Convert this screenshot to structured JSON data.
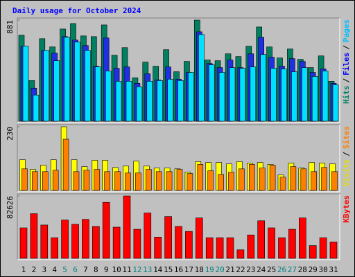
{
  "chart_data": [
    {
      "type": "bar",
      "title": "Daily usage for October 2024",
      "ylim": [
        0,
        881
      ],
      "yticks": [
        881
      ],
      "legend_separator": "/",
      "series": [
        {
          "name": "Hits",
          "color": "#008060",
          "label_color": "#008060",
          "values": [
            749,
            354,
            719,
            647,
            803,
            851,
            743,
            737,
            839,
            575,
            641,
            378,
            515,
            479,
            623,
            431,
            521,
            881,
            533,
            527,
            587,
            563,
            653,
            821,
            647,
            551,
            629,
            539,
            467,
            569,
            348
          ]
        },
        {
          "name": "Files",
          "color": "#2030e0",
          "label_color": "#0000ff",
          "values": [
            653,
            288,
            617,
            593,
            737,
            707,
            659,
            479,
            725,
            461,
            473,
            330,
            413,
            360,
            473,
            366,
            425,
            779,
            503,
            467,
            533,
            467,
            587,
            731,
            557,
            479,
            545,
            521,
            425,
            455,
            330
          ]
        },
        {
          "name": "Pages",
          "color": "#00e0ff",
          "label_color": "#00c0ff",
          "values": [
            653,
            228,
            617,
            527,
            731,
            689,
            617,
            473,
            437,
            348,
            348,
            300,
            348,
            354,
            366,
            354,
            425,
            755,
            491,
            425,
            467,
            461,
            473,
            581,
            461,
            455,
            431,
            467,
            390,
            437,
            318
          ]
        }
      ]
    },
    {
      "type": "bar",
      "ylim": [
        0,
        230
      ],
      "yticks": [
        230
      ],
      "legend_separator": "/",
      "series": [
        {
          "name": "Visits",
          "color": "#ffff00",
          "label_color": "#e0e000",
          "values": [
            111,
            76,
            91,
            111,
            230,
            111,
            86,
            109,
            109,
            83,
            88,
            106,
            88,
            81,
            81,
            78,
            66,
            104,
            101,
            101,
            96,
            104,
            99,
            101,
            94,
            56,
            99,
            81,
            101,
            99,
            96
          ]
        },
        {
          "name": "Sites",
          "color": "#ff8000",
          "label_color": "#ff8000",
          "values": [
            78,
            68,
            68,
            73,
            185,
            68,
            73,
            76,
            68,
            68,
            63,
            63,
            76,
            68,
            68,
            76,
            61,
            94,
            71,
            58,
            66,
            78,
            94,
            81,
            91,
            48,
            86,
            78,
            68,
            83,
            68
          ]
        }
      ]
    },
    {
      "type": "bar",
      "ylim": [
        0,
        82626
      ],
      "yticks": [
        82626
      ],
      "categories": [
        "1",
        "2",
        "3",
        "4",
        "5",
        "6",
        "7",
        "8",
        "9",
        "10",
        "11",
        "12",
        "13",
        "14",
        "15",
        "16",
        "17",
        "18",
        "19",
        "20",
        "21",
        "22",
        "23",
        "24",
        "25",
        "26",
        "27",
        "28",
        "29",
        "30",
        "31"
      ],
      "category_colors": [
        "#000000",
        "#000000",
        "#000000",
        "#000000",
        "#008080",
        "#008080",
        "#000000",
        "#000000",
        "#000000",
        "#000000",
        "#000000",
        "#008080",
        "#008080",
        "#000000",
        "#000000",
        "#000000",
        "#000000",
        "#000000",
        "#008080",
        "#008080",
        "#000000",
        "#000000",
        "#000000",
        "#000000",
        "#000000",
        "#008080",
        "#008080",
        "#000000",
        "#000000",
        "#000000",
        "#000000"
      ],
      "series": [
        {
          "name": "KBytes",
          "color": "#ff0000",
          "label_color": "#ff0000",
          "values": [
            40374,
            59151,
            44130,
            27229,
            50702,
            45069,
            51641,
            42252,
            74175,
            41313,
            82626,
            38496,
            60090,
            28168,
            55396,
            42252,
            35679,
            53518,
            27229,
            27229,
            27229,
            11267,
            30985,
            49763,
            40374,
            27229,
            38496,
            53518,
            16901,
            27229,
            21595
          ]
        }
      ]
    }
  ]
}
